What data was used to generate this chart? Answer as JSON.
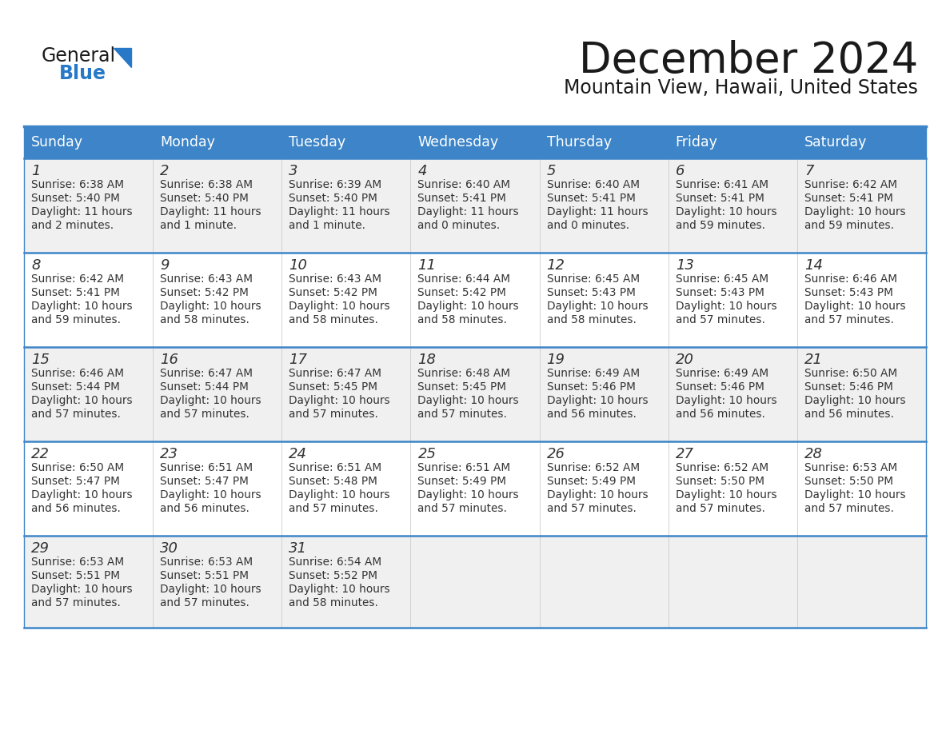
{
  "title": "December 2024",
  "subtitle": "Mountain View, Hawaii, United States",
  "header_color": "#3d85c8",
  "header_text_color": "#FFFFFF",
  "cell_bg_white": "#FFFFFF",
  "cell_bg_gray": "#F0F0F0",
  "border_color": "#3d85c8",
  "row_divider_color": "#3d85c8",
  "text_color": "#333333",
  "days_of_week": [
    "Sunday",
    "Monday",
    "Tuesday",
    "Wednesday",
    "Thursday",
    "Friday",
    "Saturday"
  ],
  "weeks": [
    [
      {
        "day": "1",
        "sunrise": "6:38 AM",
        "sunset": "5:40 PM",
        "daylight1": "11 hours",
        "daylight2": "and 2 minutes."
      },
      {
        "day": "2",
        "sunrise": "6:38 AM",
        "sunset": "5:40 PM",
        "daylight1": "11 hours",
        "daylight2": "and 1 minute."
      },
      {
        "day": "3",
        "sunrise": "6:39 AM",
        "sunset": "5:40 PM",
        "daylight1": "11 hours",
        "daylight2": "and 1 minute."
      },
      {
        "day": "4",
        "sunrise": "6:40 AM",
        "sunset": "5:41 PM",
        "daylight1": "11 hours",
        "daylight2": "and 0 minutes."
      },
      {
        "day": "5",
        "sunrise": "6:40 AM",
        "sunset": "5:41 PM",
        "daylight1": "11 hours",
        "daylight2": "and 0 minutes."
      },
      {
        "day": "6",
        "sunrise": "6:41 AM",
        "sunset": "5:41 PM",
        "daylight1": "10 hours",
        "daylight2": "and 59 minutes."
      },
      {
        "day": "7",
        "sunrise": "6:42 AM",
        "sunset": "5:41 PM",
        "daylight1": "10 hours",
        "daylight2": "and 59 minutes."
      }
    ],
    [
      {
        "day": "8",
        "sunrise": "6:42 AM",
        "sunset": "5:41 PM",
        "daylight1": "10 hours",
        "daylight2": "and 59 minutes."
      },
      {
        "day": "9",
        "sunrise": "6:43 AM",
        "sunset": "5:42 PM",
        "daylight1": "10 hours",
        "daylight2": "and 58 minutes."
      },
      {
        "day": "10",
        "sunrise": "6:43 AM",
        "sunset": "5:42 PM",
        "daylight1": "10 hours",
        "daylight2": "and 58 minutes."
      },
      {
        "day": "11",
        "sunrise": "6:44 AM",
        "sunset": "5:42 PM",
        "daylight1": "10 hours",
        "daylight2": "and 58 minutes."
      },
      {
        "day": "12",
        "sunrise": "6:45 AM",
        "sunset": "5:43 PM",
        "daylight1": "10 hours",
        "daylight2": "and 58 minutes."
      },
      {
        "day": "13",
        "sunrise": "6:45 AM",
        "sunset": "5:43 PM",
        "daylight1": "10 hours",
        "daylight2": "and 57 minutes."
      },
      {
        "day": "14",
        "sunrise": "6:46 AM",
        "sunset": "5:43 PM",
        "daylight1": "10 hours",
        "daylight2": "and 57 minutes."
      }
    ],
    [
      {
        "day": "15",
        "sunrise": "6:46 AM",
        "sunset": "5:44 PM",
        "daylight1": "10 hours",
        "daylight2": "and 57 minutes."
      },
      {
        "day": "16",
        "sunrise": "6:47 AM",
        "sunset": "5:44 PM",
        "daylight1": "10 hours",
        "daylight2": "and 57 minutes."
      },
      {
        "day": "17",
        "sunrise": "6:47 AM",
        "sunset": "5:45 PM",
        "daylight1": "10 hours",
        "daylight2": "and 57 minutes."
      },
      {
        "day": "18",
        "sunrise": "6:48 AM",
        "sunset": "5:45 PM",
        "daylight1": "10 hours",
        "daylight2": "and 57 minutes."
      },
      {
        "day": "19",
        "sunrise": "6:49 AM",
        "sunset": "5:46 PM",
        "daylight1": "10 hours",
        "daylight2": "and 56 minutes."
      },
      {
        "day": "20",
        "sunrise": "6:49 AM",
        "sunset": "5:46 PM",
        "daylight1": "10 hours",
        "daylight2": "and 56 minutes."
      },
      {
        "day": "21",
        "sunrise": "6:50 AM",
        "sunset": "5:46 PM",
        "daylight1": "10 hours",
        "daylight2": "and 56 minutes."
      }
    ],
    [
      {
        "day": "22",
        "sunrise": "6:50 AM",
        "sunset": "5:47 PM",
        "daylight1": "10 hours",
        "daylight2": "and 56 minutes."
      },
      {
        "day": "23",
        "sunrise": "6:51 AM",
        "sunset": "5:47 PM",
        "daylight1": "10 hours",
        "daylight2": "and 56 minutes."
      },
      {
        "day": "24",
        "sunrise": "6:51 AM",
        "sunset": "5:48 PM",
        "daylight1": "10 hours",
        "daylight2": "and 57 minutes."
      },
      {
        "day": "25",
        "sunrise": "6:51 AM",
        "sunset": "5:49 PM",
        "daylight1": "10 hours",
        "daylight2": "and 57 minutes."
      },
      {
        "day": "26",
        "sunrise": "6:52 AM",
        "sunset": "5:49 PM",
        "daylight1": "10 hours",
        "daylight2": "and 57 minutes."
      },
      {
        "day": "27",
        "sunrise": "6:52 AM",
        "sunset": "5:50 PM",
        "daylight1": "10 hours",
        "daylight2": "and 57 minutes."
      },
      {
        "day": "28",
        "sunrise": "6:53 AM",
        "sunset": "5:50 PM",
        "daylight1": "10 hours",
        "daylight2": "and 57 minutes."
      }
    ],
    [
      {
        "day": "29",
        "sunrise": "6:53 AM",
        "sunset": "5:51 PM",
        "daylight1": "10 hours",
        "daylight2": "and 57 minutes."
      },
      {
        "day": "30",
        "sunrise": "6:53 AM",
        "sunset": "5:51 PM",
        "daylight1": "10 hours",
        "daylight2": "and 57 minutes."
      },
      {
        "day": "31",
        "sunrise": "6:54 AM",
        "sunset": "5:52 PM",
        "daylight1": "10 hours",
        "daylight2": "and 58 minutes."
      },
      null,
      null,
      null,
      null
    ]
  ]
}
